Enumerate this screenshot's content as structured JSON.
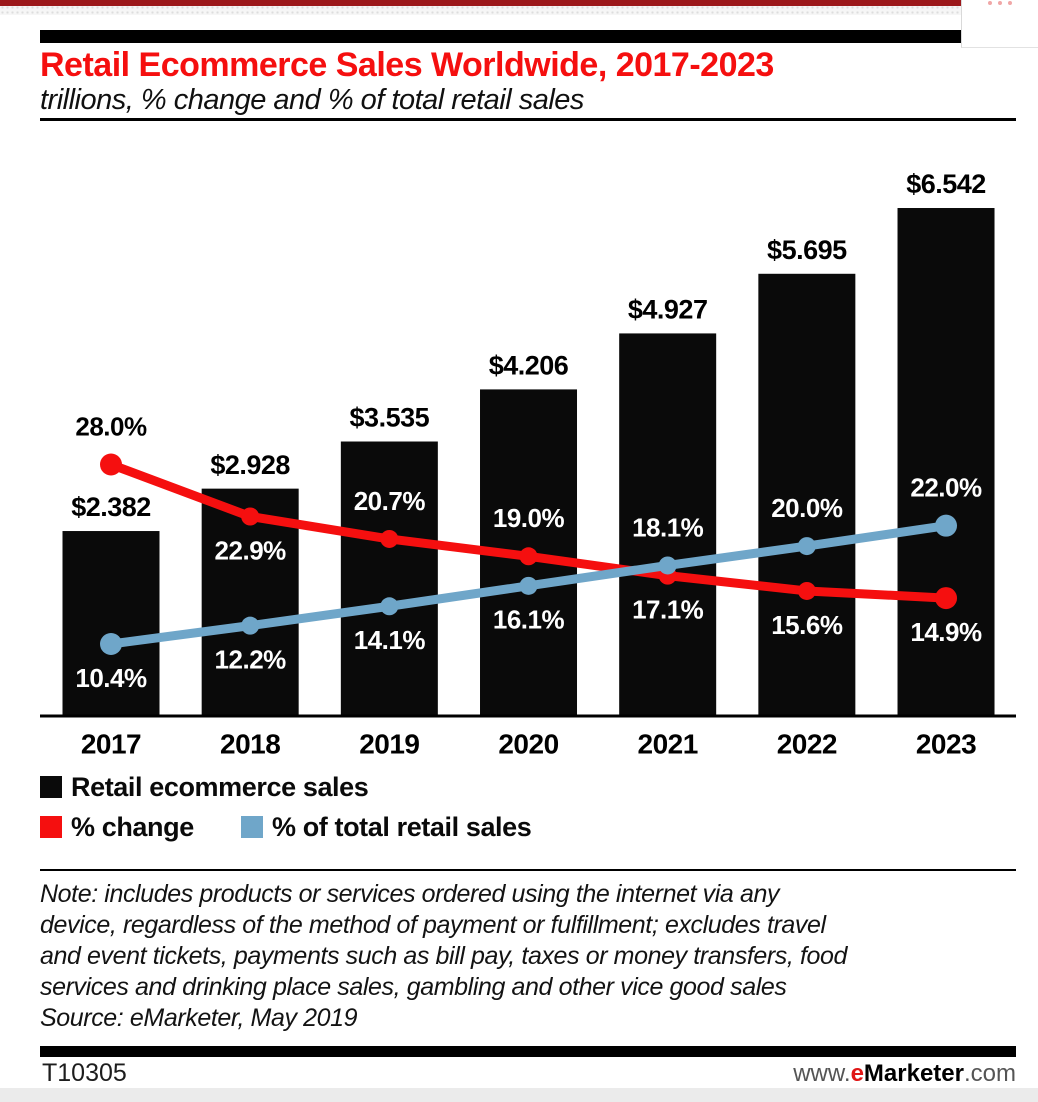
{
  "header": {
    "title": "Retail Ecommerce Sales Worldwide, 2017-2023",
    "subtitle": "trillions, % change and % of total retail sales"
  },
  "chart_data": {
    "type": "bar",
    "title": "Retail Ecommerce Sales Worldwide, 2017-2023",
    "subtitle": "trillions, % change and % of total retail sales",
    "categories": [
      "2017",
      "2018",
      "2019",
      "2020",
      "2021",
      "2022",
      "2023"
    ],
    "axes_shown": false,
    "grid": false,
    "legend_position": "bottom-left",
    "series": [
      {
        "name": "Retail ecommerce sales",
        "type": "bar",
        "unit": "trillions USD",
        "color": "#0a0a0a",
        "values": [
          2.382,
          2.928,
          3.535,
          4.206,
          4.927,
          5.695,
          6.542
        ],
        "labels": [
          "$2.382",
          "$2.928",
          "$3.535",
          "$4.206",
          "$4.927",
          "$5.695",
          "$6.542"
        ],
        "label_color": "#000000"
      },
      {
        "name": "% change",
        "type": "line",
        "unit": "percent",
        "color": "#f50f0f",
        "values": [
          28.0,
          22.9,
          20.7,
          19.0,
          17.1,
          15.6,
          14.9
        ],
        "labels": [
          "28.0%",
          "22.9%",
          "20.7%",
          "19.0%",
          "17.1%",
          "15.6%",
          "14.9%"
        ],
        "label_side": [
          "above",
          "below",
          "above",
          "above",
          "below",
          "below",
          "below"
        ],
        "label_color": [
          "#000000",
          "#ffffff",
          "#ffffff",
          "#ffffff",
          "#ffffff",
          "#ffffff",
          "#ffffff"
        ]
      },
      {
        "name": "% of total retail sales",
        "type": "line",
        "unit": "percent",
        "color": "#6fa6c9",
        "values": [
          10.4,
          12.2,
          14.1,
          16.1,
          18.1,
          20.0,
          22.0
        ],
        "labels": [
          "10.4%",
          "12.2%",
          "14.1%",
          "16.1%",
          "18.1%",
          "20.0%",
          "22.0%"
        ],
        "label_side": [
          "below",
          "below",
          "below",
          "below",
          "above",
          "above",
          "above"
        ],
        "label_color": [
          "#ffffff",
          "#ffffff",
          "#ffffff",
          "#ffffff",
          "#ffffff",
          "#ffffff",
          "#ffffff"
        ]
      }
    ]
  },
  "legend": {
    "items": [
      {
        "label": "Retail ecommerce sales",
        "color": "#0a0a0a"
      },
      {
        "label": "% change",
        "color": "#f50f0f"
      },
      {
        "label": "% of total retail sales",
        "color": "#6fa6c9"
      }
    ]
  },
  "note": {
    "lines": [
      "Note: includes products or services ordered using the internet via any",
      "device, regardless of the method of payment or fulfillment; excludes travel",
      "and event tickets, payments such as bill pay, taxes or money transfers, food",
      "services and drinking place sales, gambling and other vice good sales",
      "Source: eMarketer, May 2019"
    ]
  },
  "footer": {
    "chart_id": "T10305",
    "site_prefix": "www.",
    "site_e": "e",
    "site_name": "Marketer",
    "site_suffix": ".com"
  },
  "colors": {
    "title_red": "#f50f0f",
    "line_red": "#f50f0f",
    "line_blue": "#6fa6c9",
    "bar_black": "#0a0a0a",
    "top_bar_red": "#9c181b"
  }
}
